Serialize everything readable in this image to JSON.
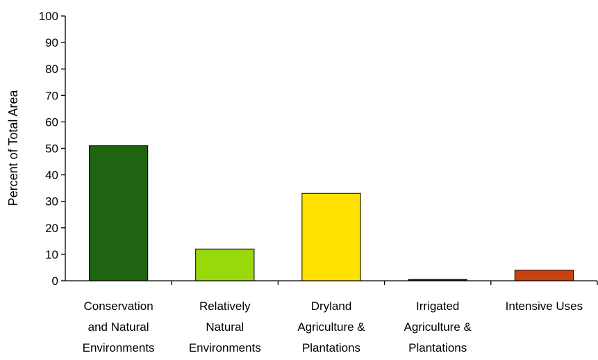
{
  "chart_data": {
    "type": "bar",
    "title": "",
    "xlabel": "",
    "ylabel": "Percent of Total Area",
    "ylim": [
      0,
      100
    ],
    "yticks": [
      0,
      10,
      20,
      30,
      40,
      50,
      60,
      70,
      80,
      90,
      100
    ],
    "grid": false,
    "legend": "none",
    "categories": [
      [
        "Conservation",
        "and Natural",
        "Environments"
      ],
      [
        "Relatively",
        "Natural",
        "Environments"
      ],
      [
        "Dryland",
        "Agriculture &",
        "Plantations"
      ],
      [
        "Irrigated",
        "Agriculture &",
        "Plantations"
      ],
      [
        "Intensive Uses"
      ]
    ],
    "values": [
      51,
      12,
      33,
      0.5,
      4
    ],
    "colors": [
      "#1f6410",
      "#99d80a",
      "#ffe200",
      "#1a1a1a",
      "#c8400f"
    ]
  }
}
